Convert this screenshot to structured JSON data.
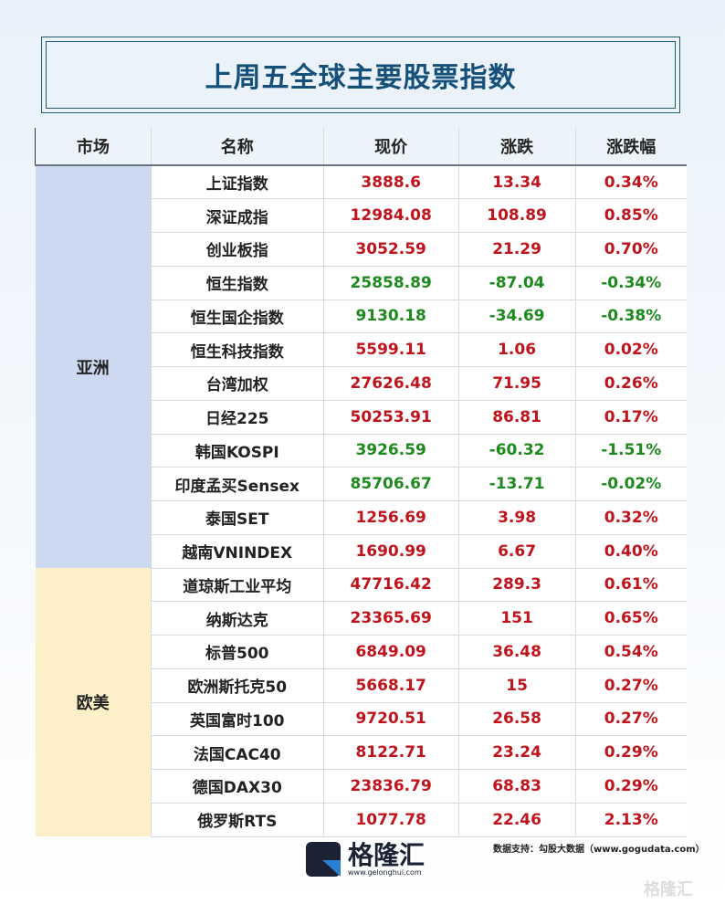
{
  "title": "上周五全球主要股票指数",
  "headers": [
    "市场",
    "名称",
    "现价",
    "涨跌",
    "涨跌幅"
  ],
  "colors": {
    "up": "#c0141c",
    "down": "#1e8a1e",
    "asia_bg": "#cdd9f0",
    "europe_us_bg": "#fdf0c8",
    "title": "#15507a"
  },
  "groups": [
    {
      "market": "亚洲",
      "rows": [
        {
          "name": "上证指数",
          "price": "3888.6",
          "change": "13.34",
          "pct": "0.34%",
          "dir": "up"
        },
        {
          "name": "深证成指",
          "price": "12984.08",
          "change": "108.89",
          "pct": "0.85%",
          "dir": "up"
        },
        {
          "name": "创业板指",
          "price": "3052.59",
          "change": "21.29",
          "pct": "0.70%",
          "dir": "up"
        },
        {
          "name": "恒生指数",
          "price": "25858.89",
          "change": "-87.04",
          "pct": "-0.34%",
          "dir": "down"
        },
        {
          "name": "恒生国企指数",
          "price": "9130.18",
          "change": "-34.69",
          "pct": "-0.38%",
          "dir": "down"
        },
        {
          "name": "恒生科技指数",
          "price": "5599.11",
          "change": "1.06",
          "pct": "0.02%",
          "dir": "up"
        },
        {
          "name": "台湾加权",
          "price": "27626.48",
          "change": "71.95",
          "pct": "0.26%",
          "dir": "up"
        },
        {
          "name": "日经225",
          "price": "50253.91",
          "change": "86.81",
          "pct": "0.17%",
          "dir": "up"
        },
        {
          "name": "韩国KOSPI",
          "price": "3926.59",
          "change": "-60.32",
          "pct": "-1.51%",
          "dir": "down"
        },
        {
          "name": "印度孟买Sensex",
          "price": "85706.67",
          "change": "-13.71",
          "pct": "-0.02%",
          "dir": "down"
        },
        {
          "name": "泰国SET",
          "price": "1256.69",
          "change": "3.98",
          "pct": "0.32%",
          "dir": "up"
        },
        {
          "name": "越南VNINDEX",
          "price": "1690.99",
          "change": "6.67",
          "pct": "0.40%",
          "dir": "up"
        }
      ]
    },
    {
      "market": "欧美",
      "rows": [
        {
          "name": "道琼斯工业平均",
          "price": "47716.42",
          "change": "289.3",
          "pct": "0.61%",
          "dir": "up"
        },
        {
          "name": "纳斯达克",
          "price": "23365.69",
          "change": "151",
          "pct": "0.65%",
          "dir": "up"
        },
        {
          "name": "标普500",
          "price": "6849.09",
          "change": "36.48",
          "pct": "0.54%",
          "dir": "up"
        },
        {
          "name": "欧洲斯托克50",
          "price": "5668.17",
          "change": "15",
          "pct": "0.27%",
          "dir": "up"
        },
        {
          "name": "英国富时100",
          "price": "9720.51",
          "change": "26.58",
          "pct": "0.27%",
          "dir": "up"
        },
        {
          "name": "法国CAC40",
          "price": "8122.71",
          "change": "23.24",
          "pct": "0.29%",
          "dir": "up"
        },
        {
          "name": "德国DAX30",
          "price": "23836.79",
          "change": "68.83",
          "pct": "0.29%",
          "dir": "up"
        },
        {
          "name": "俄罗斯RTS",
          "price": "1077.78",
          "change": "22.46",
          "pct": "2.13%",
          "dir": "up"
        }
      ]
    }
  ],
  "footer": {
    "logo_text": "格隆汇",
    "logo_url": "www.gelonghui.com",
    "source": "数据支持：勾股大数据（www.gogudata.com）",
    "watermark": "格隆汇"
  }
}
